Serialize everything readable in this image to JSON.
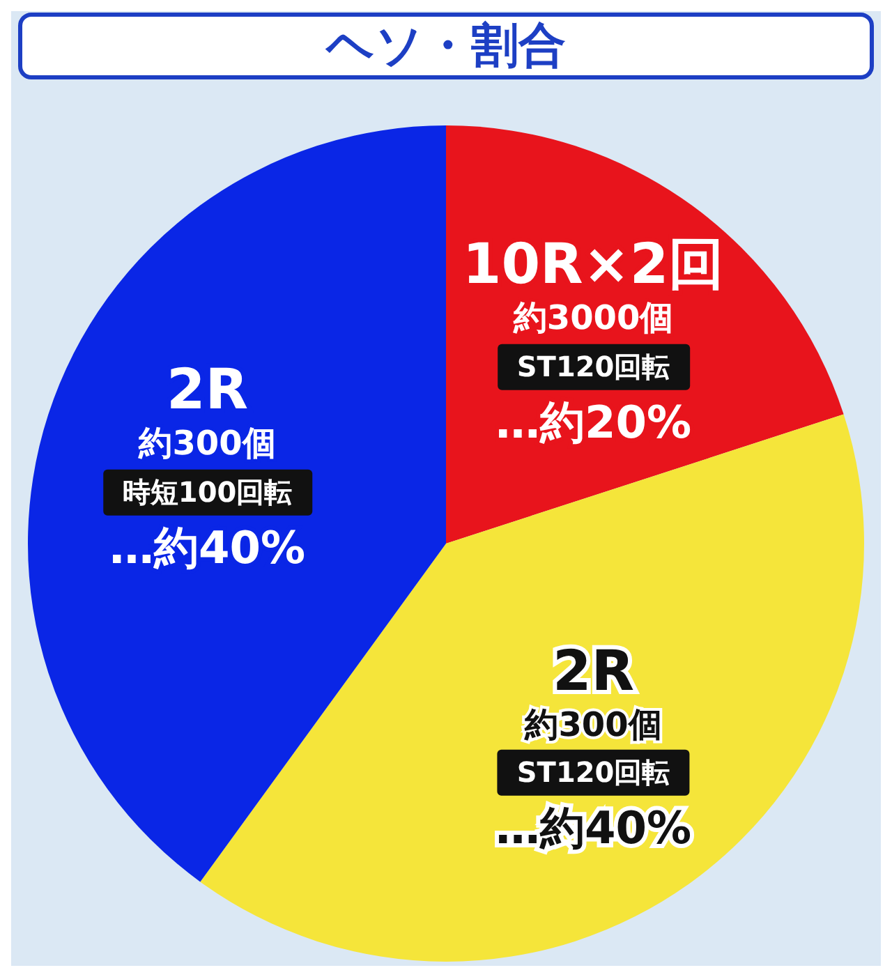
{
  "chart_data": {
    "type": "pie",
    "title": "ヘソ・割合",
    "categories": [
      "10R×2回",
      "2R",
      "2R"
    ],
    "annotations": [
      "約3000個",
      "ST120回転",
      "約300個",
      "ST120回転",
      "約300個",
      "時短100回転"
    ],
    "values": [
      20,
      40,
      40
    ],
    "value_labels": [
      "…約20%",
      "…約40%",
      "…約40%"
    ],
    "colors": [
      "#e8141c",
      "#f5e53a",
      "#0a26e6"
    ],
    "legend": false
  }
}
